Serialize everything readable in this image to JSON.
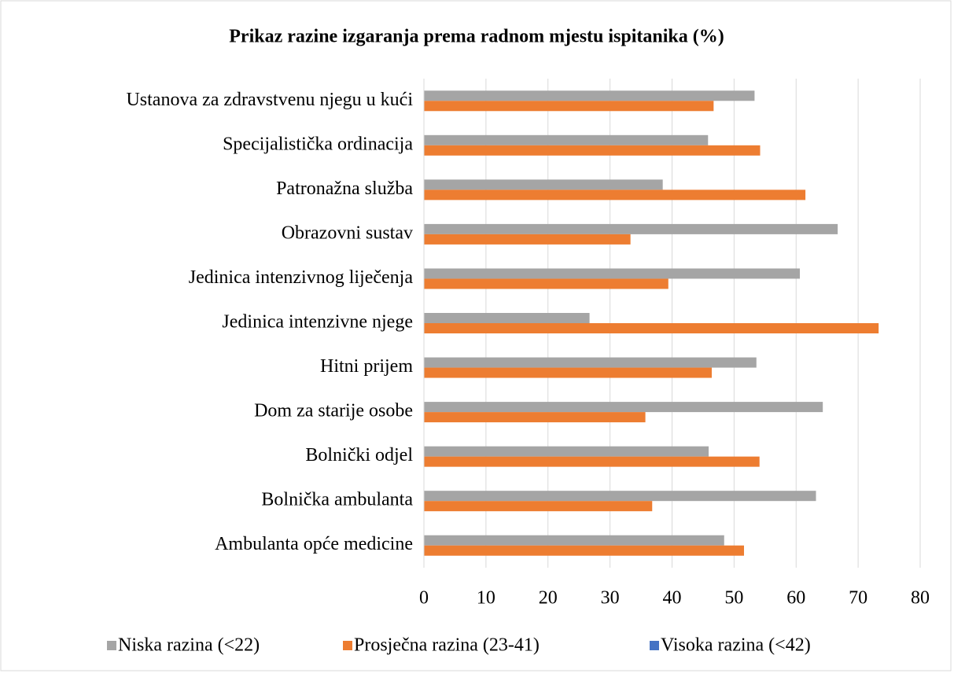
{
  "chart_data": {
    "type": "bar",
    "orientation": "horizontal",
    "title": "Prikaz razine izgaranja prema radnom mjestu ispitanika (%)",
    "categories": [
      "Ustanova za zdravstvenu njegu u kući",
      "Specijalistička ordinacija",
      "Patronažna služba",
      "Obrazovni sustav",
      "Jedinica intenzivnog liječenja",
      "Jedinica intenzivne njege",
      "Hitni prijem",
      "Dom za starije osobe",
      "Bolnički odjel",
      "Bolnička ambulanta",
      "Ambulanta opće medicine"
    ],
    "series": [
      {
        "name": "Niska razina (<22)",
        "color": "#a5a5a5",
        "values": [
          53.3,
          45.8,
          38.5,
          66.7,
          60.6,
          26.7,
          53.6,
          64.3,
          45.9,
          63.2,
          48.4
        ]
      },
      {
        "name": "Prosječna razina (23-41)",
        "color": "#ed7d31",
        "values": [
          46.7,
          54.2,
          61.5,
          33.3,
          39.4,
          73.3,
          46.4,
          35.7,
          54.1,
          36.8,
          51.6
        ]
      },
      {
        "name": "Visoka razina (<42)",
        "color": "#4472c4",
        "values": [
          0,
          0,
          0,
          0,
          0,
          0,
          0,
          0,
          0,
          0,
          0
        ]
      }
    ],
    "xlim": [
      0,
      80
    ],
    "xticks": [
      0,
      10,
      20,
      30,
      40,
      50,
      60,
      70,
      80
    ],
    "grid": true,
    "legend": "bottom"
  }
}
